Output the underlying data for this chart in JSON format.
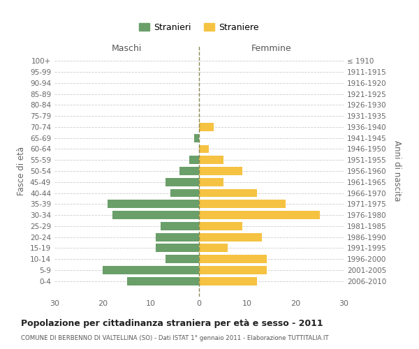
{
  "age_groups": [
    "0-4",
    "5-9",
    "10-14",
    "15-19",
    "20-24",
    "25-29",
    "30-34",
    "35-39",
    "40-44",
    "45-49",
    "50-54",
    "55-59",
    "60-64",
    "65-69",
    "70-74",
    "75-79",
    "80-84",
    "85-89",
    "90-94",
    "95-99",
    "100+"
  ],
  "birth_years": [
    "2006-2010",
    "2001-2005",
    "1996-2000",
    "1991-1995",
    "1986-1990",
    "1981-1985",
    "1976-1980",
    "1971-1975",
    "1966-1970",
    "1961-1965",
    "1956-1960",
    "1951-1955",
    "1946-1950",
    "1941-1945",
    "1936-1940",
    "1931-1935",
    "1926-1930",
    "1921-1925",
    "1916-1920",
    "1911-1915",
    "≤ 1910"
  ],
  "maschi": [
    15,
    20,
    7,
    9,
    9,
    8,
    18,
    19,
    6,
    7,
    4,
    2,
    0,
    1,
    0,
    0,
    0,
    0,
    0,
    0,
    0
  ],
  "femmine": [
    12,
    14,
    14,
    6,
    13,
    9,
    25,
    18,
    12,
    5,
    9,
    5,
    2,
    0,
    3,
    0,
    0,
    0,
    0,
    0,
    0
  ],
  "male_color": "#6a9f6a",
  "female_color": "#f5c242",
  "legend_male": "Stranieri",
  "legend_female": "Straniere",
  "xlabel_left": "Maschi",
  "xlabel_right": "Femmine",
  "ylabel_left": "Fasce di età",
  "ylabel_right": "Anni di nascita",
  "title": "Popolazione per cittadinanza straniera per età e sesso - 2011",
  "subtitle": "COMUNE DI BERBENNO DI VALTELLINA (SO) - Dati ISTAT 1° gennaio 2011 - Elaborazione TUTTITALIA.IT",
  "xlim": 30,
  "background_color": "#ffffff",
  "grid_color": "#cccccc"
}
